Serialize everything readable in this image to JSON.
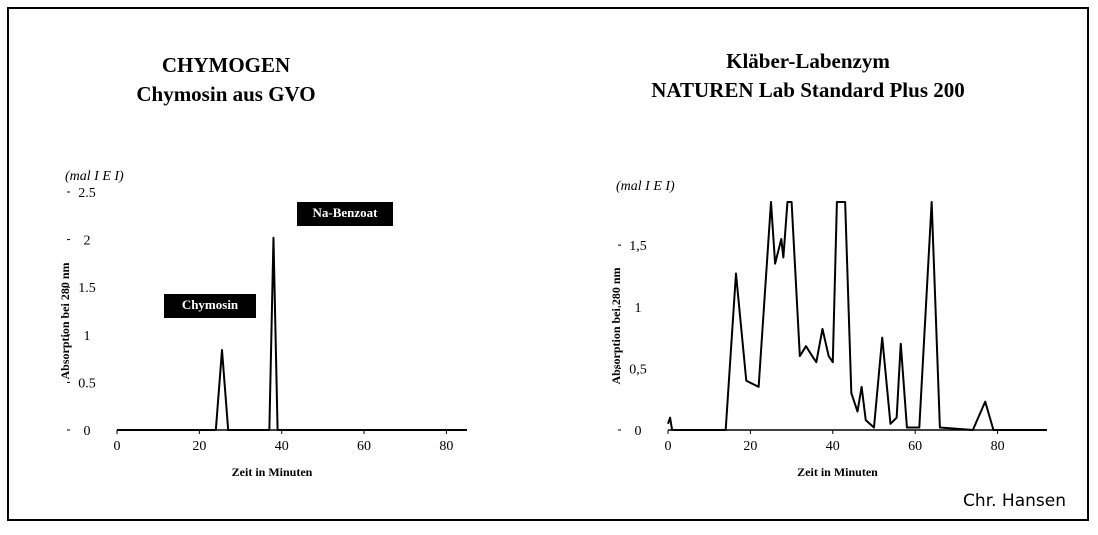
{
  "chart_data": [
    {
      "type": "line",
      "title": "CHYMOGEN",
      "subtitle": "Chymosin aus GVO",
      "xlabel": "Zeit in Minuten",
      "ylabel": "Absorption bei 280 nm",
      "y_unit_label": "(mal I E I)",
      "annotations": [
        "Chymosin",
        "Na-Benzoat"
      ],
      "x": [
        0,
        24,
        25.5,
        27,
        37,
        38,
        39,
        85
      ],
      "series": [
        {
          "color": "#000000",
          "values": [
            0,
            0,
            0.84,
            0,
            0,
            2.02,
            0,
            0
          ]
        }
      ],
      "xlim": [
        0,
        85
      ],
      "xticks": [
        0,
        20,
        40,
        60,
        80
      ],
      "ylim": [
        0,
        2.5
      ],
      "yticks": [
        0,
        0.5,
        1,
        1.5,
        2,
        2.5
      ]
    },
    {
      "type": "line",
      "title": "Kläber-Labenzym",
      "subtitle": "NATUREN Lab Standard Plus 200",
      "xlabel": "Zeit in Minuten",
      "ylabel": "Absorption bei 280 nm",
      "y_unit_label": "(mal I E I)",
      "x": [
        0,
        0.5,
        1,
        14,
        16.5,
        19,
        22,
        25,
        26,
        27.5,
        28,
        29,
        30,
        32,
        33.5,
        35,
        36,
        37.5,
        39,
        40,
        41,
        43,
        44.5,
        46,
        47,
        48,
        50,
        52,
        54,
        55.5,
        56.5,
        58,
        61,
        64,
        66,
        74,
        77,
        79,
        92
      ],
      "series": [
        {
          "color": "#000000",
          "values": [
            0.05,
            0.1,
            0,
            0,
            1.27,
            0.4,
            0.35,
            1.85,
            1.35,
            1.55,
            1.4,
            1.85,
            1.85,
            0.6,
            0.68,
            0.6,
            0.55,
            0.82,
            0.6,
            0.55,
            1.85,
            1.85,
            0.3,
            0.15,
            0.35,
            0.08,
            0.02,
            0.75,
            0.05,
            0.1,
            0.7,
            0.02,
            0.02,
            1.85,
            0.02,
            0,
            0.23,
            0,
            0
          ]
        }
      ],
      "xlim": [
        0,
        92
      ],
      "xticks": [
        0,
        20,
        40,
        60,
        80
      ],
      "ylim": [
        0,
        1.85
      ],
      "yticks": [
        0,
        {
          "value": 0.5,
          "label": "0,5"
        },
        1,
        {
          "value": 1.5,
          "label": "1,5"
        }
      ]
    }
  ],
  "credit": "Chr. Hansen"
}
